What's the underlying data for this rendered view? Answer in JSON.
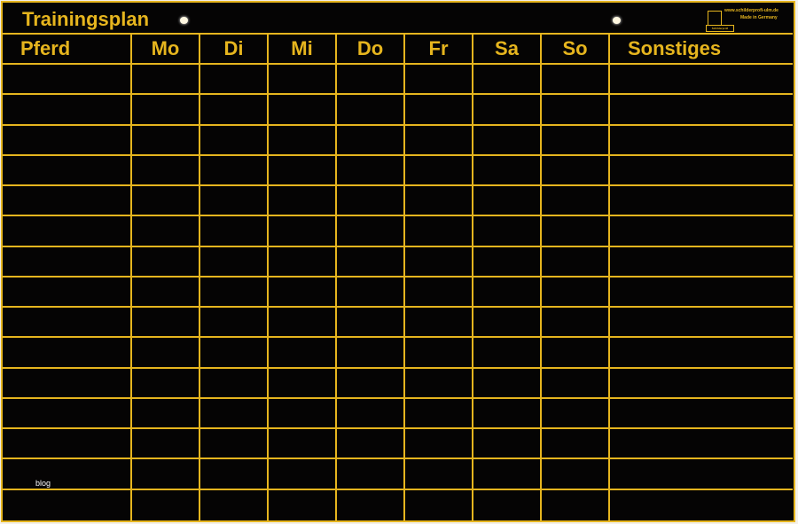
{
  "title": "Trainingsplan",
  "logo": {
    "url": "www.schilderprofi-ulm.de",
    "made": "Made in Germany",
    "tag": "Schilderprofi"
  },
  "columns": [
    "Pferd",
    "Mo",
    "Di",
    "Mi",
    "Do",
    "Fr",
    "Sa",
    "So",
    "Sonstiges"
  ],
  "body_rows": 15,
  "watermark": "blog",
  "colors": {
    "board": "#050404",
    "lines": "#e6b51e"
  }
}
